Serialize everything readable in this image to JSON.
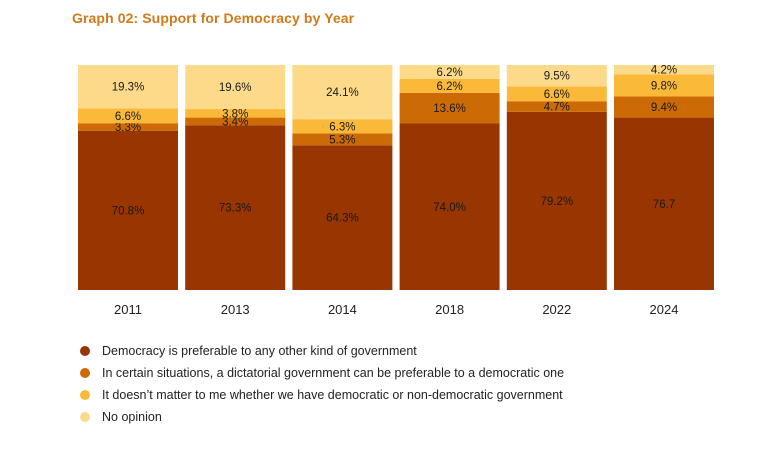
{
  "title": "Graph 02: Support for Democracy by Year",
  "chart_data": {
    "type": "bar",
    "stacked": true,
    "normalized_percent": true,
    "categories": [
      "2011",
      "2013",
      "2014",
      "2018",
      "2022",
      "2024"
    ],
    "series": [
      {
        "name": "Democracy is preferable to any other kind of government",
        "color": "#983500",
        "values": [
          70.8,
          73.3,
          64.3,
          74.0,
          79.2,
          76.7
        ],
        "labels": [
          "70.8%",
          "73.3%",
          "64.3%",
          "74.0%",
          "79.2%",
          "76.7"
        ]
      },
      {
        "name": "In certain situations, a dictatorial government can be preferable to a democratic one",
        "color": "#cc6a05",
        "values": [
          3.3,
          3.4,
          5.3,
          13.6,
          4.7,
          9.4
        ],
        "labels": [
          "3.3%",
          "3.4%",
          "5.3%",
          "13.6%",
          "4.7%",
          "9.4%"
        ]
      },
      {
        "name": "It doesn’t matter to me whether we have democratic or non-democratic government",
        "color": "#fbb93a",
        "values": [
          6.6,
          3.8,
          6.3,
          6.2,
          6.6,
          9.8
        ],
        "labels": [
          "6.6%",
          "3.8%",
          "6.3%",
          "6.2%",
          "6.6%",
          "9.8%"
        ]
      },
      {
        "name": "No opinion",
        "color": "#fdd98a",
        "values": [
          19.3,
          19.6,
          24.1,
          6.2,
          9.5,
          4.2
        ],
        "labels": [
          "19.3%",
          "19.6%",
          "24.1%",
          "6.2%",
          "9.5%",
          "4.2%"
        ]
      }
    ],
    "legend_position": "bottom-left",
    "grid": false
  }
}
